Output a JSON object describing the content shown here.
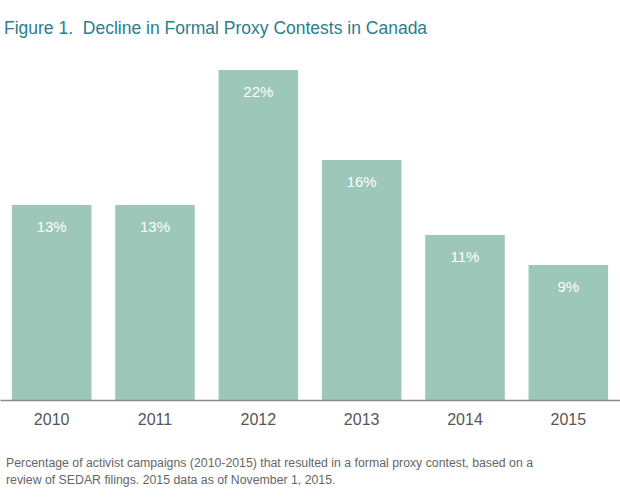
{
  "chart_data": {
    "type": "bar",
    "title": "Figure 1.  Decline in Formal Proxy Contests in Canada",
    "subtitle": [
      "Percentage of activist campaigns (2010-2015) that resulted in a formal proxy contest, based on a",
      "review of SEDAR filings. 2015 data as of November 1, 2015."
    ],
    "categories": [
      "2010",
      "2011",
      "2012",
      "2013",
      "2014",
      "2015"
    ],
    "values": [
      13,
      13,
      22,
      16,
      11,
      9
    ],
    "value_labels": [
      "13%",
      "13%",
      "22%",
      "16%",
      "11%",
      "9%"
    ],
    "color": "#9cc7b9",
    "ylim": [
      0,
      22
    ],
    "data_labels": true,
    "tick_labels": "x",
    "grid": false
  }
}
